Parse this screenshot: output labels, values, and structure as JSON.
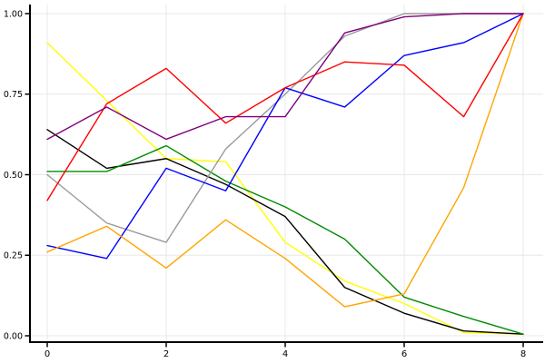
{
  "figure": {
    "background_color": "#ffffff",
    "grid_color": "#e8e8e8",
    "spine_color": "#000000",
    "tick_label_color": "#000000"
  },
  "chart_data": {
    "type": "line",
    "title": "",
    "xlabel": "",
    "ylabel": "",
    "xlim": [
      0,
      8
    ],
    "ylim": [
      0.0,
      1.0
    ],
    "grid": true,
    "legend_position": "none",
    "markers": false,
    "x": [
      0,
      1,
      2,
      3,
      4,
      5,
      6,
      7,
      8
    ],
    "x_tick_values": [
      0,
      2,
      4,
      6,
      8
    ],
    "x_tick_labels": [
      "0",
      "2",
      "4",
      "6",
      "8"
    ],
    "y_tick_values": [
      0.0,
      0.25,
      0.5,
      0.75,
      1.0
    ],
    "y_tick_labels": [
      "0.00",
      "0.25",
      "0.50",
      "0.75",
      "1.00"
    ],
    "series": [
      {
        "name": "yellow-series",
        "color": "#ffff00",
        "values": [
          0.91,
          0.73,
          0.55,
          0.54,
          0.29,
          0.17,
          0.1,
          0.01,
          0.005
        ]
      },
      {
        "name": "black-series",
        "color": "#000000",
        "values": [
          0.64,
          0.52,
          0.55,
          0.47,
          0.37,
          0.15,
          0.07,
          0.015,
          0.005
        ]
      },
      {
        "name": "green-series",
        "color": "#008b00",
        "values": [
          0.51,
          0.51,
          0.59,
          0.48,
          0.4,
          0.3,
          0.12,
          0.06,
          0.005
        ]
      },
      {
        "name": "gray-series",
        "color": "#9a9a9a",
        "values": [
          0.5,
          0.35,
          0.29,
          0.58,
          0.75,
          0.93,
          1.0,
          1.0,
          1.0
        ]
      },
      {
        "name": "blue-series",
        "color": "#0000ff",
        "values": [
          0.28,
          0.24,
          0.52,
          0.45,
          0.77,
          0.71,
          0.87,
          0.91,
          1.0
        ]
      },
      {
        "name": "orange-series",
        "color": "#ffa500",
        "values": [
          0.26,
          0.34,
          0.21,
          0.36,
          0.24,
          0.09,
          0.13,
          0.46,
          1.0
        ]
      },
      {
        "name": "red-series",
        "color": "#ff0000",
        "values": [
          0.42,
          0.72,
          0.83,
          0.66,
          0.77,
          0.85,
          0.84,
          0.68,
          1.0
        ]
      },
      {
        "name": "purple-series",
        "color": "#800080",
        "values": [
          0.61,
          0.71,
          0.61,
          0.68,
          0.68,
          0.94,
          0.99,
          1.0,
          1.0
        ]
      }
    ]
  }
}
